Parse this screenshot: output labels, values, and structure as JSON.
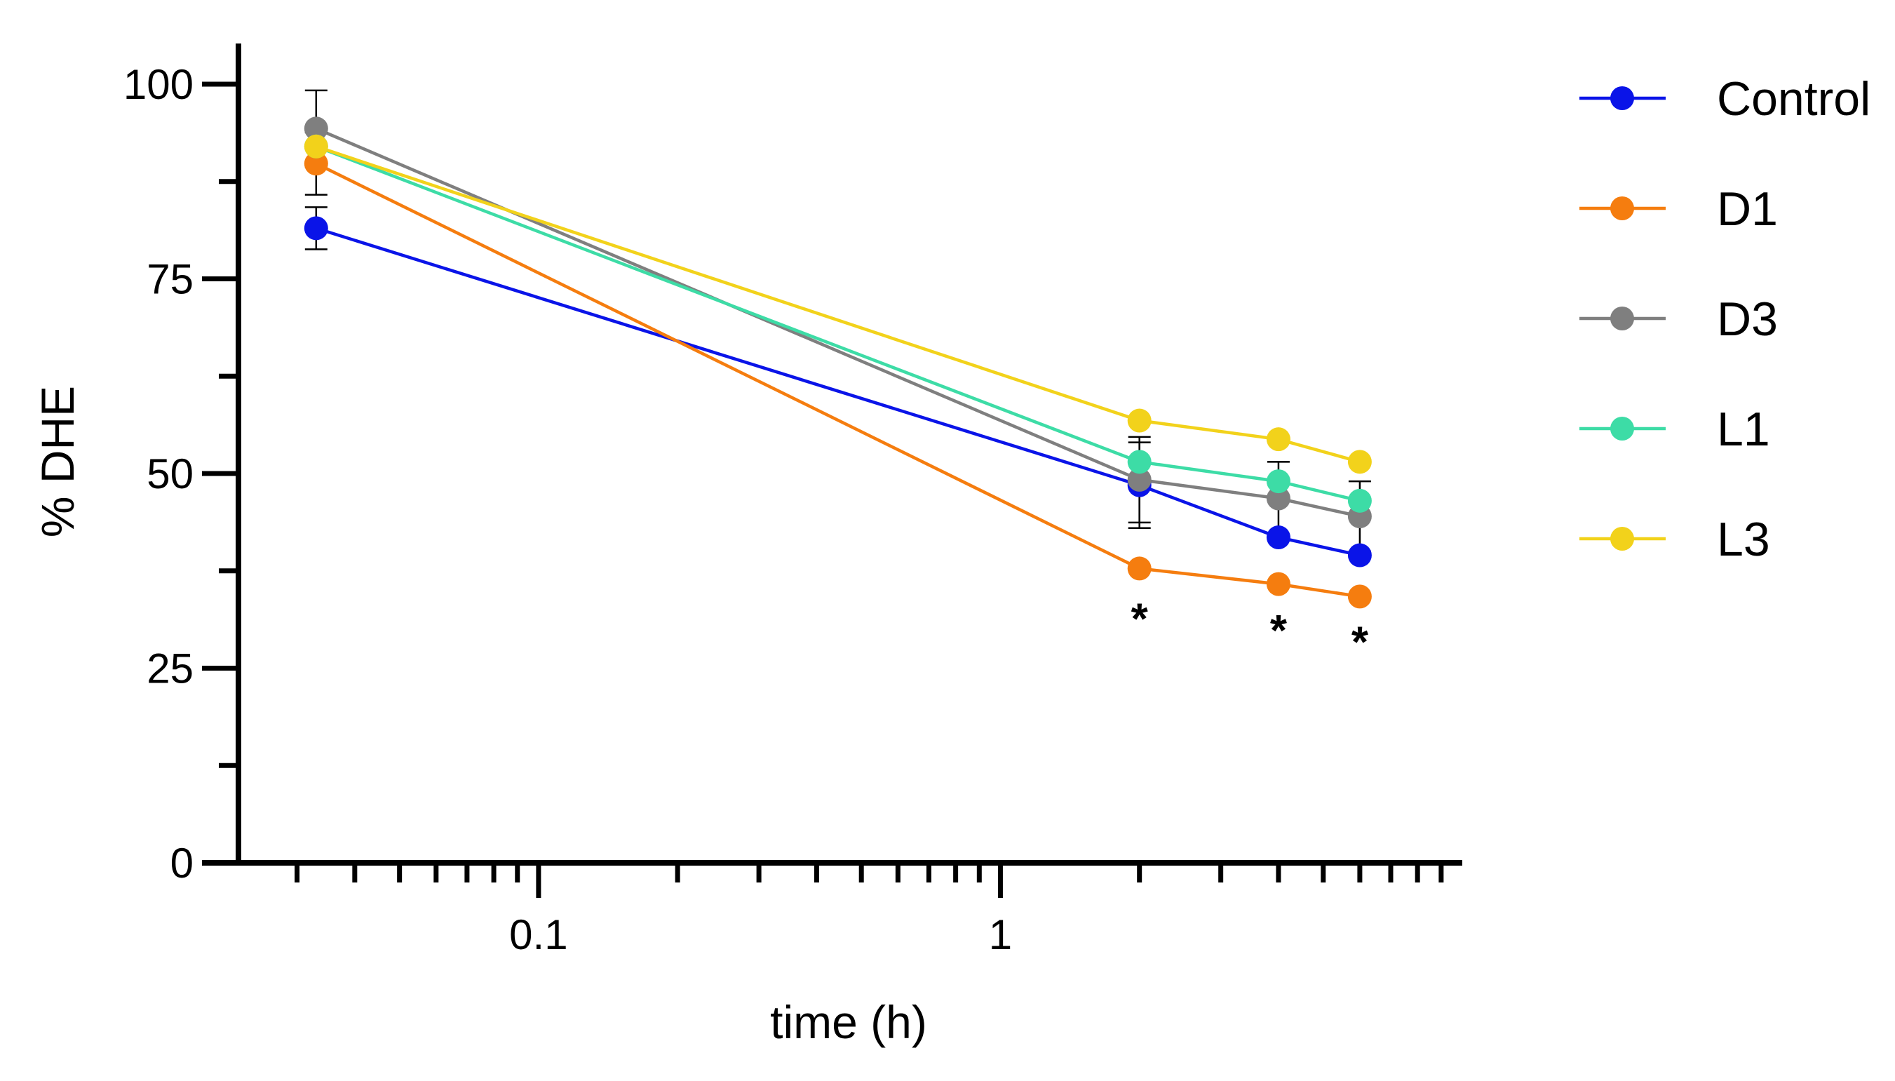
{
  "chart_data": {
    "type": "line",
    "title": "",
    "xlabel": "time (h)",
    "ylabel": "% DHE",
    "xscale": "log",
    "xlim": [
      0.0224,
      10
    ],
    "ylim": [
      0,
      100
    ],
    "x_ticks": [
      {
        "value": 0.1,
        "label": "0.1"
      },
      {
        "value": 1,
        "label": "1"
      }
    ],
    "y_ticks": [
      {
        "value": 0,
        "label": "0"
      },
      {
        "value": 25,
        "label": "25"
      },
      {
        "value": 50,
        "label": "50"
      },
      {
        "value": 75,
        "label": "75"
      },
      {
        "value": 100,
        "label": "100"
      }
    ],
    "x": [
      0.033,
      2,
      4,
      6
    ],
    "series": [
      {
        "name": "Control",
        "color": "#0a14e8",
        "values": [
          81.5,
          48.5,
          41.8,
          39.5
        ],
        "errors": [
          2.7,
          5.5,
          0,
          0
        ]
      },
      {
        "name": "D1",
        "color": "#f57d0f",
        "values": [
          89.8,
          37.8,
          35.8,
          34.2
        ],
        "errors": [
          4.0,
          0,
          0,
          0
        ]
      },
      {
        "name": "D3",
        "color": "#7f7f7f",
        "values": [
          94.3,
          49.2,
          46.8,
          44.5
        ],
        "errors": [
          4.9,
          5.5,
          4.7,
          4.5
        ]
      },
      {
        "name": "L1",
        "color": "#3ddca6",
        "values": [
          92.0,
          51.5,
          49.0,
          46.5
        ],
        "errors": [
          0,
          0,
          0,
          0
        ]
      },
      {
        "name": "L3",
        "color": "#f2d21b",
        "values": [
          92.0,
          56.8,
          54.4,
          51.5
        ],
        "errors": [
          0,
          0,
          0,
          0
        ]
      }
    ],
    "annotations": [
      {
        "text": "*",
        "x": 2,
        "y": 32.5
      },
      {
        "text": "*",
        "x": 4,
        "y": 31.0
      },
      {
        "text": "*",
        "x": 6,
        "y": 29.5
      }
    ],
    "legend": "right",
    "grid": false
  }
}
